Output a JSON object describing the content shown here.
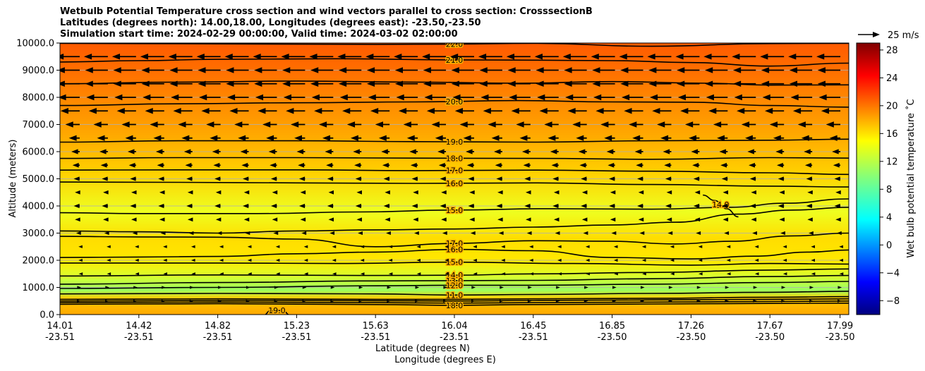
{
  "chart_data": {
    "type": "contour",
    "title_lines": [
      "Wetbulb Potential Temperature cross section and wind vectors parallel to cross section: CrosssectionB",
      "Latitudes (degrees north): 14.00,18.00, Longitudes (degrees east): -23.50,-23.50",
      "Simulation start time: 2024-02-29 00:00:00, Valid time: 2024-03-02 02:00:00"
    ],
    "ylabel": "Altitude (meters)",
    "xlabel_lat": "Latitude (degrees N)",
    "xlabel_lon": "Longitude (degrees E)",
    "ylim": [
      0,
      10000
    ],
    "y_ticks": [
      {
        "value": 0,
        "label": "0.0"
      },
      {
        "value": 1000,
        "label": "1000.0"
      },
      {
        "value": 2000,
        "label": "2000.0"
      },
      {
        "value": 3000,
        "label": "3000.0"
      },
      {
        "value": 4000,
        "label": "4000.0"
      },
      {
        "value": 5000,
        "label": "5000.0"
      },
      {
        "value": 6000,
        "label": "6000.0"
      },
      {
        "value": 7000,
        "label": "7000.0"
      },
      {
        "value": 8000,
        "label": "8000.0"
      },
      {
        "value": 9000,
        "label": "9000.0"
      },
      {
        "value": 10000,
        "label": "10000.0"
      }
    ],
    "x_ticks": [
      {
        "lat": "14.01",
        "lon": "-23.51"
      },
      {
        "lat": "14.42",
        "lon": "-23.51"
      },
      {
        "lat": "14.82",
        "lon": "-23.51"
      },
      {
        "lat": "15.23",
        "lon": "-23.51"
      },
      {
        "lat": "15.63",
        "lon": "-23.51"
      },
      {
        "lat": "16.04",
        "lon": "-23.51"
      },
      {
        "lat": "16.45",
        "lon": "-23.51"
      },
      {
        "lat": "16.85",
        "lon": "-23.50"
      },
      {
        "lat": "17.26",
        "lon": "-23.50"
      },
      {
        "lat": "17.67",
        "lon": "-23.50"
      },
      {
        "lat": "17.99",
        "lon": "-23.50"
      }
    ],
    "x_tick_positions": [
      0.0,
      0.1,
      0.2,
      0.3,
      0.4,
      0.5,
      0.6,
      0.7,
      0.8,
      0.9,
      0.9889
    ],
    "colorbar": {
      "label": "Wet bulb potential temperature ˚C",
      "range": [
        -10,
        29
      ],
      "ticks": [
        -8,
        -4,
        0,
        4,
        8,
        12,
        16,
        20,
        24,
        28
      ],
      "tick_labels": [
        "−8",
        "−4",
        "0",
        "4",
        "8",
        "12",
        "16",
        "20",
        "24",
        "28"
      ]
    },
    "quiver_key": {
      "label": "25 m/s",
      "value": 25
    },
    "contours": [
      {
        "level": 22,
        "label": "22.0",
        "points": [
          [
            0.0,
            9990
          ],
          [
            0.2,
            9970
          ],
          [
            0.4,
            9950
          ],
          [
            0.5,
            9960
          ],
          [
            0.6,
            9990
          ],
          [
            0.75,
            9880
          ],
          [
            0.9,
            9980
          ],
          [
            1.0,
            9990
          ]
        ]
      },
      {
        "level": 21,
        "label": "21.0",
        "points": [
          [
            0.0,
            9300
          ],
          [
            0.1,
            9350
          ],
          [
            0.2,
            9400
          ],
          [
            0.35,
            9420
          ],
          [
            0.5,
            9380
          ],
          [
            0.6,
            9370
          ],
          [
            0.7,
            9350
          ],
          [
            0.8,
            9280
          ],
          [
            0.9,
            9150
          ],
          [
            1.0,
            9260
          ]
        ]
      },
      {
        "level": 21,
        "label": "",
        "points": [
          [
            0.0,
            8500
          ],
          [
            0.15,
            8560
          ],
          [
            0.3,
            8600
          ],
          [
            0.45,
            8560
          ],
          [
            0.58,
            8520
          ],
          [
            0.7,
            8580
          ],
          [
            0.82,
            8520
          ],
          [
            0.9,
            8450
          ],
          [
            1.0,
            8460
          ]
        ]
      },
      {
        "level": 20,
        "label": "20.0",
        "points": [
          [
            0.0,
            7700
          ],
          [
            0.15,
            7760
          ],
          [
            0.3,
            7800
          ],
          [
            0.45,
            7830
          ],
          [
            0.58,
            7880
          ],
          [
            0.7,
            7830
          ],
          [
            0.8,
            7820
          ],
          [
            0.9,
            7700
          ],
          [
            1.0,
            7640
          ]
        ]
      },
      {
        "level": 19,
        "label": "19.0",
        "points": [
          [
            0.0,
            6350
          ],
          [
            0.15,
            6400
          ],
          [
            0.3,
            6400
          ],
          [
            0.45,
            6370
          ],
          [
            0.6,
            6350
          ],
          [
            0.75,
            6400
          ],
          [
            0.9,
            6420
          ],
          [
            1.0,
            6460
          ]
        ]
      },
      {
        "level": 18,
        "label": "18.0",
        "points": [
          [
            0.0,
            5750
          ],
          [
            0.15,
            5780
          ],
          [
            0.3,
            5780
          ],
          [
            0.45,
            5760
          ],
          [
            0.6,
            5750
          ],
          [
            0.75,
            5720
          ],
          [
            0.9,
            5780
          ],
          [
            1.0,
            5760
          ]
        ]
      },
      {
        "level": 17,
        "label": "17.0",
        "points": [
          [
            0.0,
            5320
          ],
          [
            0.15,
            5330
          ],
          [
            0.3,
            5330
          ],
          [
            0.45,
            5300
          ],
          [
            0.6,
            5320
          ],
          [
            0.75,
            5280
          ],
          [
            0.9,
            5220
          ],
          [
            1.0,
            5160
          ]
        ]
      },
      {
        "level": 16,
        "label": "16.0",
        "points": [
          [
            0.0,
            4880
          ],
          [
            0.15,
            4870
          ],
          [
            0.3,
            4850
          ],
          [
            0.45,
            4830
          ],
          [
            0.6,
            4850
          ],
          [
            0.75,
            4790
          ],
          [
            0.9,
            4730
          ],
          [
            1.0,
            4700
          ]
        ]
      },
      {
        "level": 15,
        "label": "15.0",
        "points": [
          [
            0.0,
            3750
          ],
          [
            0.1,
            3720
          ],
          [
            0.25,
            3720
          ],
          [
            0.38,
            3780
          ],
          [
            0.5,
            3850
          ],
          [
            0.62,
            3900
          ],
          [
            0.75,
            3880
          ],
          [
            0.85,
            3950
          ],
          [
            0.92,
            4100
          ],
          [
            1.0,
            4260
          ]
        ]
      },
      {
        "level": 15,
        "label": "",
        "points": [
          [
            0.0,
            3080
          ],
          [
            0.1,
            3050
          ],
          [
            0.2,
            3000
          ],
          [
            0.3,
            3080
          ],
          [
            0.4,
            3120
          ],
          [
            0.5,
            3150
          ],
          [
            0.6,
            3220
          ],
          [
            0.7,
            3300
          ],
          [
            0.78,
            3400
          ],
          [
            0.86,
            3700
          ],
          [
            0.93,
            3850
          ],
          [
            1.0,
            3950
          ]
        ]
      },
      {
        "level": 17,
        "label": "17.0",
        "points": [
          [
            0.0,
            2880
          ],
          [
            0.1,
            2860
          ],
          [
            0.2,
            2850
          ],
          [
            0.3,
            2780
          ],
          [
            0.4,
            2500
          ],
          [
            0.5,
            2620
          ],
          [
            0.6,
            2720
          ],
          [
            0.7,
            2700
          ],
          [
            0.78,
            2600
          ],
          [
            0.85,
            2700
          ],
          [
            0.93,
            2900
          ],
          [
            1.0,
            3000
          ]
        ]
      },
      {
        "level": 16,
        "label": "16.0",
        "points": [
          [
            0.0,
            2100
          ],
          [
            0.1,
            2120
          ],
          [
            0.2,
            2140
          ],
          [
            0.3,
            2240
          ],
          [
            0.4,
            2300
          ],
          [
            0.5,
            2400
          ],
          [
            0.6,
            2350
          ],
          [
            0.7,
            2100
          ],
          [
            0.8,
            2050
          ],
          [
            0.88,
            2150
          ],
          [
            0.95,
            2300
          ],
          [
            1.0,
            2380
          ]
        ]
      },
      {
        "level": 15,
        "label": "15.0",
        "points": [
          [
            0.0,
            1900
          ],
          [
            0.2,
            1900
          ],
          [
            0.35,
            1880
          ],
          [
            0.5,
            1930
          ],
          [
            0.65,
            1880
          ],
          [
            0.8,
            1820
          ],
          [
            0.9,
            1880
          ],
          [
            1.0,
            1860
          ]
        ]
      },
      {
        "level": 14,
        "label": "14.0",
        "points": [
          [
            0.0,
            1420
          ],
          [
            0.2,
            1460
          ],
          [
            0.4,
            1440
          ],
          [
            0.5,
            1450
          ],
          [
            0.6,
            1500
          ],
          [
            0.75,
            1550
          ],
          [
            0.9,
            1640
          ],
          [
            1.0,
            1680
          ]
        ]
      },
      {
        "level": 13,
        "label": "13.0",
        "points": [
          [
            0.0,
            1120
          ],
          [
            0.2,
            1180
          ],
          [
            0.4,
            1240
          ],
          [
            0.5,
            1250
          ],
          [
            0.6,
            1260
          ],
          [
            0.75,
            1320
          ],
          [
            0.9,
            1400
          ],
          [
            1.0,
            1440
          ]
        ]
      },
      {
        "level": 12,
        "label": "12.0",
        "points": [
          [
            0.0,
            960
          ],
          [
            0.2,
            1000
          ],
          [
            0.4,
            1060
          ],
          [
            0.5,
            1080
          ],
          [
            0.6,
            1080
          ],
          [
            0.75,
            1120
          ],
          [
            0.9,
            1180
          ],
          [
            1.0,
            1220
          ]
        ]
      },
      {
        "level": 11,
        "label": "11.0",
        "points": [
          [
            0.0,
            760
          ],
          [
            0.2,
            780
          ],
          [
            0.4,
            760
          ],
          [
            0.5,
            720
          ],
          [
            0.6,
            740
          ],
          [
            0.75,
            780
          ],
          [
            0.9,
            820
          ],
          [
            1.0,
            860
          ]
        ]
      },
      {
        "level": 12,
        "label": "",
        "points": [
          [
            0.0,
            560
          ],
          [
            0.2,
            580
          ],
          [
            0.4,
            560
          ],
          [
            0.5,
            560
          ],
          [
            0.6,
            580
          ],
          [
            0.75,
            600
          ],
          [
            0.9,
            640
          ],
          [
            1.0,
            660
          ]
        ]
      },
      {
        "level": 14,
        "label": "",
        "points": [
          [
            0.0,
            500
          ],
          [
            0.2,
            520
          ],
          [
            0.4,
            510
          ],
          [
            0.5,
            500
          ],
          [
            0.6,
            520
          ],
          [
            0.75,
            540
          ],
          [
            0.9,
            560
          ],
          [
            1.0,
            580
          ]
        ]
      },
      {
        "level": 16,
        "label": "",
        "points": [
          [
            0.0,
            440
          ],
          [
            0.2,
            460
          ],
          [
            0.4,
            440
          ],
          [
            0.5,
            420
          ],
          [
            0.6,
            440
          ],
          [
            0.75,
            460
          ],
          [
            0.9,
            480
          ],
          [
            1.0,
            500
          ]
        ]
      },
      {
        "level": 18,
        "label": "18.0",
        "points": [
          [
            0.0,
            380
          ],
          [
            0.2,
            400
          ],
          [
            0.4,
            370
          ],
          [
            0.5,
            340
          ],
          [
            0.6,
            370
          ],
          [
            0.75,
            390
          ],
          [
            0.9,
            410
          ],
          [
            1.0,
            420
          ]
        ]
      },
      {
        "level": 19,
        "label": "19.0",
        "points": [
          [
            0.26,
            0
          ],
          [
            0.265,
            120
          ],
          [
            0.275,
            160
          ],
          [
            0.285,
            100
          ],
          [
            0.29,
            0
          ]
        ]
      },
      {
        "level": 14,
        "label": "14.0",
        "points": [
          [
            0.815,
            4400
          ],
          [
            0.83,
            4200
          ],
          [
            0.845,
            3900
          ],
          [
            0.86,
            3600
          ]
        ]
      }
    ]
  }
}
